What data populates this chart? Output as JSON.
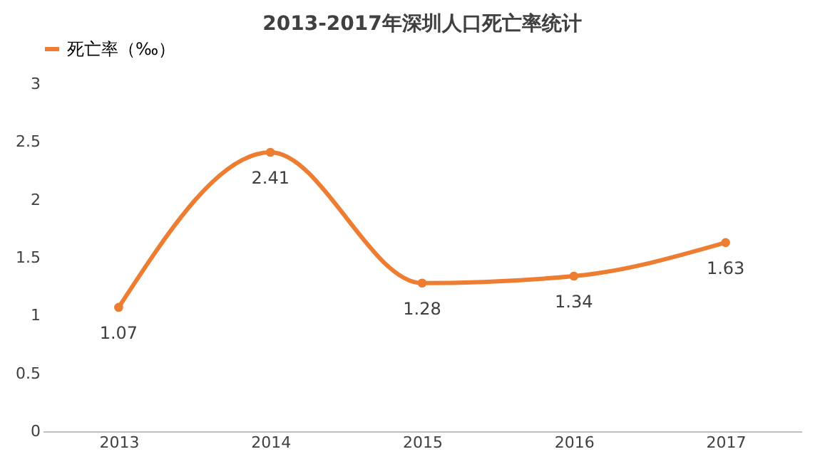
{
  "chart_data": {
    "type": "line",
    "title": "2013-2017年深圳人口死亡率统计",
    "categories": [
      "2013",
      "2014",
      "2015",
      "2016",
      "2017"
    ],
    "series": [
      {
        "name": "死亡率（‰）",
        "color": "#ed7d31",
        "values": [
          1.07,
          2.41,
          1.28,
          1.34,
          1.63
        ]
      }
    ],
    "ylim": [
      0,
      3
    ],
    "yticks": [
      0,
      0.5,
      1,
      1.5,
      2,
      2.5,
      3
    ],
    "data_labels": true,
    "legend": "top",
    "marker": "circle",
    "line_style": "solid",
    "grid": false
  }
}
